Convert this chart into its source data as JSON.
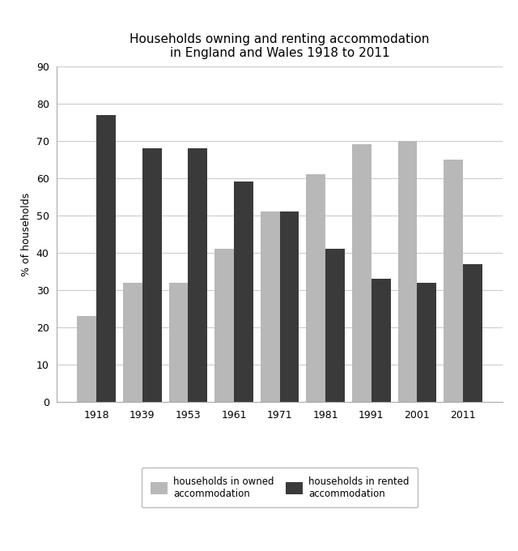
{
  "title": "Households owning and renting accommodation\nin England and Wales 1918 to 2011",
  "years": [
    "1918",
    "1939",
    "1953",
    "1961",
    "1971",
    "1981",
    "1991",
    "2001",
    "2011"
  ],
  "owned": [
    23,
    32,
    32,
    41,
    51,
    61,
    69,
    70,
    65
  ],
  "rented": [
    77,
    68,
    68,
    59,
    51,
    41,
    33,
    32,
    37
  ],
  "owned_color": "#b8b8b8",
  "rented_color": "#3a3a3a",
  "ylabel": "% of households",
  "ylim": [
    0,
    90
  ],
  "yticks": [
    0,
    10,
    20,
    30,
    40,
    50,
    60,
    70,
    80,
    90
  ],
  "legend_owned": "households in owned\naccommodation",
  "legend_rented": "households in rented\naccommodation",
  "bar_width": 0.42,
  "title_fontsize": 11,
  "label_fontsize": 9,
  "tick_fontsize": 9,
  "legend_fontsize": 8.5,
  "background_color": "#ffffff",
  "grid_color": "#cccccc"
}
